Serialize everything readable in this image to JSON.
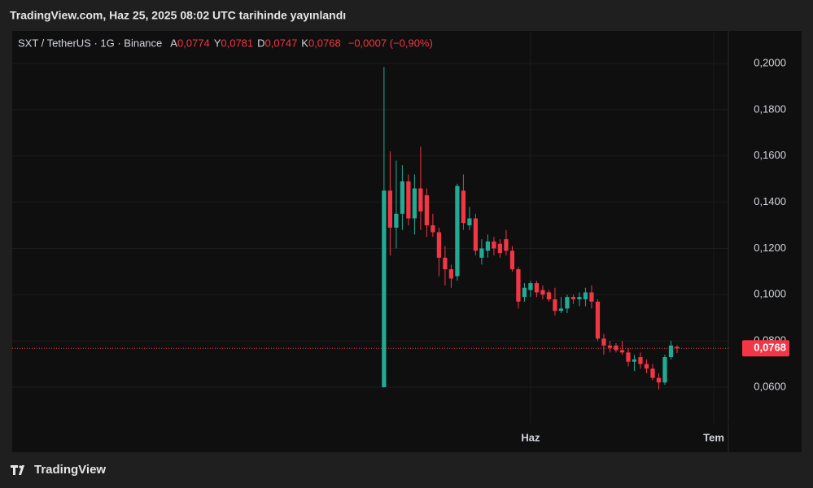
{
  "header": {
    "published": "TradingView.com, Haz 25, 2025 08:02 UTC tarihinde yayınlandı",
    "symbol": "SXT / TetherUS · 1G · Binance",
    "ohlc": [
      {
        "key": "A",
        "value": "0,0774"
      },
      {
        "key": "Y",
        "value": "0,0781"
      },
      {
        "key": "D",
        "value": "0,0747"
      },
      {
        "key": "K",
        "value": "0,0768"
      }
    ],
    "change": "−0,0007 (−0,90%)"
  },
  "footer": {
    "brand": "TradingView"
  },
  "chart_data": {
    "type": "candlestick",
    "up_color": "#22ab94",
    "down_color": "#f23645",
    "x": [
      0,
      1,
      2,
      3,
      4,
      5,
      6,
      7,
      8,
      9,
      10,
      11,
      12,
      13,
      14,
      15,
      16,
      17,
      18,
      19,
      20,
      21,
      22,
      23,
      24,
      25,
      26,
      27,
      28,
      29,
      30,
      31,
      32,
      33,
      34,
      35,
      36,
      37,
      38,
      39,
      40,
      41,
      42,
      43,
      44,
      45,
      46,
      47,
      48
    ],
    "open": [
      0.06,
      0.145,
      0.129,
      0.135,
      0.149,
      0.133,
      0.146,
      0.143,
      0.13,
      0.127,
      0.116,
      0.111,
      0.108,
      0.145,
      0.13,
      0.133,
      0.116,
      0.119,
      0.123,
      0.122,
      0.124,
      0.119,
      0.111,
      0.099,
      0.102,
      0.105,
      0.102,
      0.101,
      0.098,
      0.093,
      0.094,
      0.099,
      0.098,
      0.098,
      0.101,
      0.097,
      0.081,
      0.078,
      0.078,
      0.076,
      0.075,
      0.071,
      0.073,
      0.07,
      0.068,
      0.064,
      0.062,
      0.073,
      0.0774
    ],
    "high": [
      0.1985,
      0.162,
      0.158,
      0.156,
      0.152,
      0.152,
      0.164,
      0.146,
      0.135,
      0.129,
      0.121,
      0.113,
      0.148,
      0.152,
      0.138,
      0.135,
      0.124,
      0.126,
      0.125,
      0.124,
      0.128,
      0.121,
      0.112,
      0.105,
      0.106,
      0.106,
      0.104,
      0.102,
      0.103,
      0.099,
      0.1,
      0.1,
      0.101,
      0.103,
      0.104,
      0.098,
      0.083,
      0.08,
      0.079,
      0.08,
      0.077,
      0.074,
      0.075,
      0.072,
      0.07,
      0.066,
      0.074,
      0.08,
      0.0781
    ],
    "low": [
      0.0598,
      0.117,
      0.12,
      0.128,
      0.13,
      0.126,
      0.128,
      0.125,
      0.125,
      0.108,
      0.104,
      0.103,
      0.106,
      0.128,
      0.128,
      0.117,
      0.113,
      0.116,
      0.117,
      0.116,
      0.117,
      0.11,
      0.094,
      0.097,
      0.099,
      0.099,
      0.098,
      0.097,
      0.091,
      0.092,
      0.092,
      0.096,
      0.095,
      0.095,
      0.094,
      0.08,
      0.074,
      0.075,
      0.075,
      0.074,
      0.069,
      0.067,
      0.068,
      0.066,
      0.063,
      0.059,
      0.061,
      0.072,
      0.0747
    ],
    "close": [
      0.145,
      0.129,
      0.135,
      0.149,
      0.133,
      0.146,
      0.136,
      0.13,
      0.127,
      0.116,
      0.111,
      0.107,
      0.147,
      0.131,
      0.133,
      0.119,
      0.12,
      0.123,
      0.12,
      0.118,
      0.119,
      0.111,
      0.097,
      0.103,
      0.105,
      0.101,
      0.1,
      0.098,
      0.093,
      0.094,
      0.099,
      0.098,
      0.099,
      0.101,
      0.097,
      0.081,
      0.078,
      0.077,
      0.076,
      0.075,
      0.071,
      0.072,
      0.07,
      0.068,
      0.064,
      0.062,
      0.073,
      0.078,
      0.0768
    ],
    "xlim": [
      -60.9,
      56.4
    ],
    "xticks": [
      {
        "value": 24,
        "label": "Haz"
      },
      {
        "value": 54,
        "label": "Tem"
      }
    ],
    "ylim": [
      0.0322,
      0.2134
    ],
    "yticks": [
      {
        "value": 0.06,
        "label": "0,0600"
      },
      {
        "value": 0.08,
        "label": "0,0800"
      },
      {
        "value": 0.1,
        "label": "0,1000"
      },
      {
        "value": 0.12,
        "label": "0,1200"
      },
      {
        "value": 0.14,
        "label": "0,1400"
      },
      {
        "value": 0.16,
        "label": "0,1600"
      },
      {
        "value": 0.18,
        "label": "0,1800"
      },
      {
        "value": 0.2,
        "label": "0,2000"
      }
    ],
    "grid": true,
    "last_price": {
      "value": 0.0768,
      "label": "0,0768"
    }
  }
}
